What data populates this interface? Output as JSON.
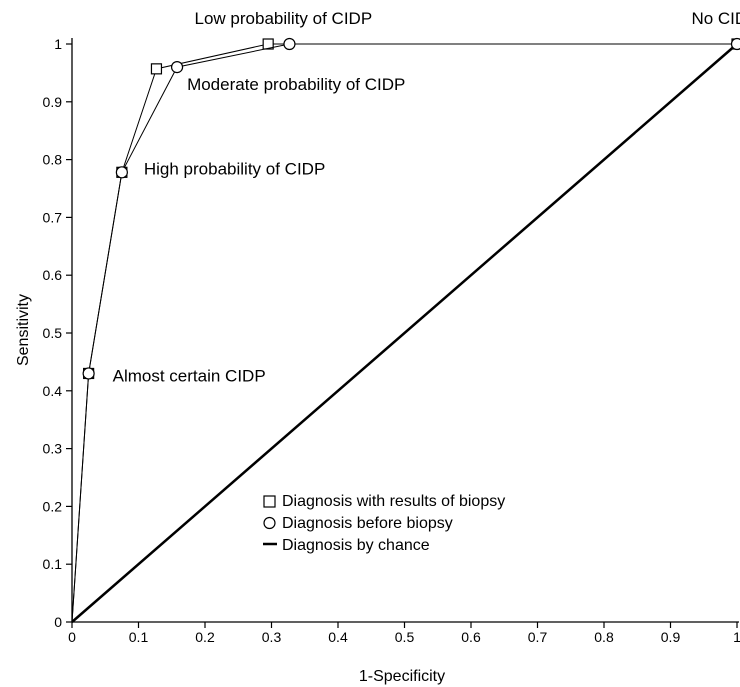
{
  "chart_data": {
    "type": "line",
    "xlabel": "1-Specificity",
    "ylabel": "Sensitivity",
    "xlim": [
      0,
      1
    ],
    "ylim": [
      0,
      1
    ],
    "x_ticks": [
      "0",
      "0.1",
      "0.2",
      "0.3",
      "0.4",
      "0.5",
      "0.6",
      "0.7",
      "0.8",
      "0.9",
      "1"
    ],
    "y_ticks": [
      "0",
      "0.1",
      "0.2",
      "0.3",
      "0.4",
      "0.5",
      "0.6",
      "0.7",
      "0.8",
      "0.9",
      "1"
    ],
    "grid": false,
    "legend_position": "bottom-center",
    "series": [
      {
        "name": "Diagnosis with results of biopsy",
        "marker": "square",
        "points": [
          [
            0,
            0
          ],
          [
            0.025,
            0.43
          ],
          [
            0.075,
            0.778
          ],
          [
            0.127,
            0.957
          ],
          [
            0.295,
            1.0
          ],
          [
            1.0,
            1.0
          ]
        ]
      },
      {
        "name": "Diagnosis before biopsy",
        "marker": "circle",
        "points": [
          [
            0,
            0
          ],
          [
            0.025,
            0.43
          ],
          [
            0.075,
            0.778
          ],
          [
            0.158,
            0.96
          ],
          [
            0.327,
            1.0
          ],
          [
            1.0,
            1.0
          ]
        ]
      },
      {
        "name": "Diagnosis by chance",
        "marker": "line",
        "points": [
          [
            0,
            0
          ],
          [
            1.0,
            1.0
          ]
        ]
      }
    ],
    "annotations": [
      {
        "text": "Almost certain CIDP",
        "x": 0.025,
        "y": 0.43
      },
      {
        "text": "High probability of CIDP",
        "x": 0.075,
        "y": 0.778
      },
      {
        "text": "Moderate probability of CIDP",
        "x": 0.158,
        "y": 0.96
      },
      {
        "text": "Low probability of CIDP",
        "x": 0.327,
        "y": 1.0
      },
      {
        "text": "No CIDP",
        "x": 1.0,
        "y": 1.0
      }
    ]
  }
}
